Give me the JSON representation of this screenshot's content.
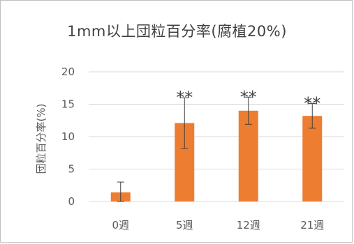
{
  "chart_data": {
    "type": "bar",
    "title": "1mm以上団粒百分率(腐植20%)",
    "ylabel": "団粒百分率(%)",
    "xlabel": "",
    "categories": [
      "0週",
      "5週",
      "12週",
      "21週"
    ],
    "values": [
      1.4,
      12.1,
      14.0,
      13.2
    ],
    "error": [
      1.6,
      3.9,
      2.1,
      1.9
    ],
    "significance": [
      "",
      "**",
      "**",
      "**"
    ],
    "ylim": [
      0,
      20
    ],
    "yticks": [
      0,
      5,
      10,
      15,
      20
    ],
    "ytick_labels": [
      "0",
      "5",
      "10",
      "15",
      "20"
    ],
    "grid": "horizontal",
    "legend": "none",
    "bar_color": "#ED7D31"
  }
}
